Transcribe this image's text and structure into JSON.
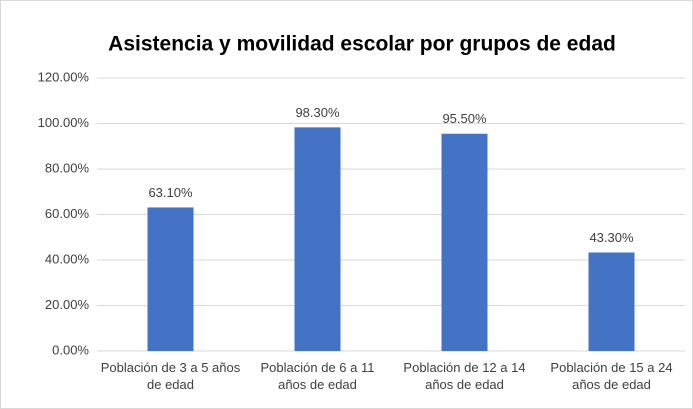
{
  "chart_data": {
    "type": "bar",
    "title": "Asistencia y movilidad escolar por grupos de edad",
    "categories": [
      "Población de 3 a 5 años de edad",
      "Población de 6 a 11 años de edad",
      "Población de 12 a 14 años de edad",
      "Población de 15 a 24 años de edad"
    ],
    "values": [
      63.1,
      98.3,
      95.5,
      43.3
    ],
    "value_labels": [
      "63.10%",
      "98.30%",
      "95.50%",
      "43.30%"
    ],
    "color": "#4472c4",
    "ylim": [
      0,
      120
    ],
    "yticks": [
      {
        "value": 0,
        "label": "0.00%"
      },
      {
        "value": 20,
        "label": "20.00%"
      },
      {
        "value": 40,
        "label": "40.00%"
      },
      {
        "value": 60,
        "label": "60.00%"
      },
      {
        "value": 80,
        "label": "80.00%"
      },
      {
        "value": 100,
        "label": "100.00%"
      },
      {
        "value": 120,
        "label": "120.00%"
      }
    ],
    "grid": true
  }
}
